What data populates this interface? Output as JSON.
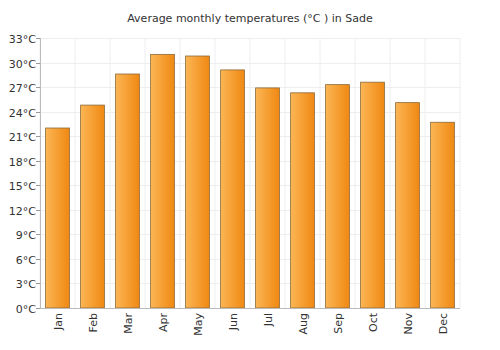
{
  "chart_data": {
    "type": "bar",
    "title": "Average monthly temperatures (°C ) in Sade",
    "categories": [
      "Jan",
      "Feb",
      "Mar",
      "Apr",
      "May",
      "Jun",
      "Jul",
      "Aug",
      "Sep",
      "Oct",
      "Nov",
      "Dec"
    ],
    "values": [
      22.0,
      24.8,
      28.6,
      31.0,
      30.8,
      29.1,
      26.9,
      26.3,
      27.3,
      27.6,
      25.1,
      22.7
    ],
    "color": "#f99d1c",
    "ylim": [
      0,
      33
    ],
    "yticks": [
      {
        "value": 0,
        "label": "0°C"
      },
      {
        "value": 3,
        "label": "3°C"
      },
      {
        "value": 6,
        "label": "6°C"
      },
      {
        "value": 9,
        "label": "9°C"
      },
      {
        "value": 12,
        "label": "12°C"
      },
      {
        "value": 15,
        "label": "15°C"
      },
      {
        "value": 18,
        "label": "18°C"
      },
      {
        "value": 21,
        "label": "21°C"
      },
      {
        "value": 24,
        "label": "24°C"
      },
      {
        "value": 27,
        "label": "27°C"
      },
      {
        "value": 30,
        "label": "30°C"
      },
      {
        "value": 33,
        "label": "33°C"
      }
    ],
    "grid": true
  }
}
